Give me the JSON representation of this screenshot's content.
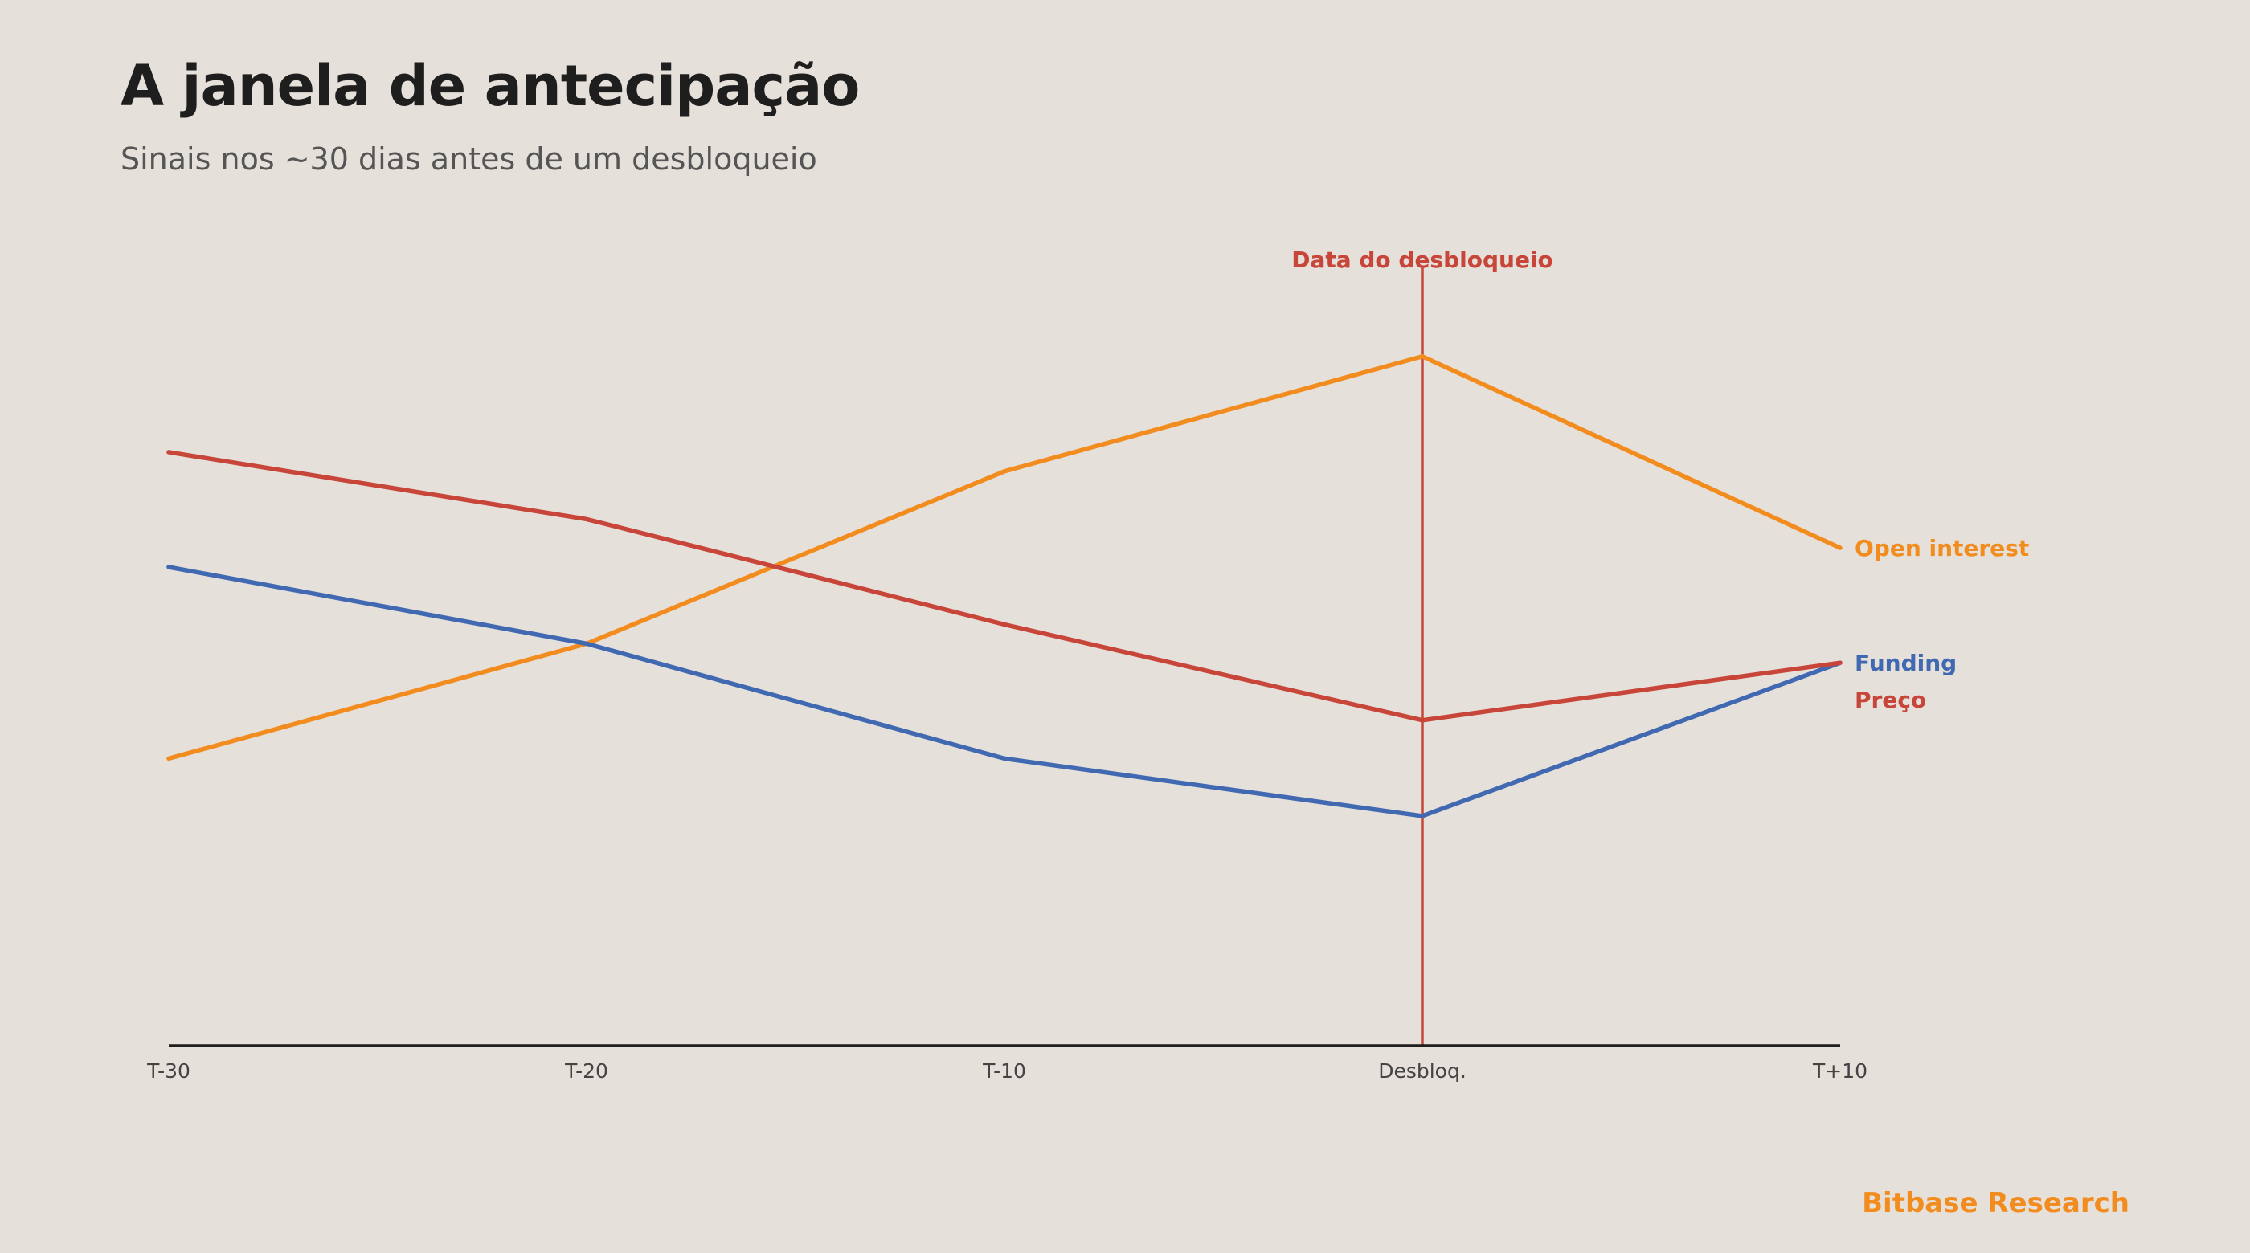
{
  "title": "A janela de antecipação",
  "subtitle": "Sinais nos ~30 dias antes de um desbloqueio",
  "brand": "Bitbase Research",
  "chart_data": {
    "type": "line",
    "categories": [
      "T-30",
      "T-20",
      "T-10",
      "Desbloq.",
      "T+10"
    ],
    "series": [
      {
        "name": "Open interest",
        "values": [
          30,
          42,
          60,
          72,
          52
        ],
        "color": "#F28C1E"
      },
      {
        "name": "Funding",
        "values": [
          50,
          42,
          30,
          24,
          40
        ],
        "color": "#4169B2"
      },
      {
        "name": "Preço",
        "values": [
          62,
          55,
          44,
          34,
          40
        ],
        "color": "#C8453A"
      }
    ],
    "ylim": [
      0,
      100
    ],
    "grid": false,
    "legend": "direct labels at right end",
    "annotation": {
      "label": "Data do desbloqueio",
      "category": "Desbloq.",
      "color": "#C8453A"
    },
    "axis_color": "#1E1E1E"
  }
}
